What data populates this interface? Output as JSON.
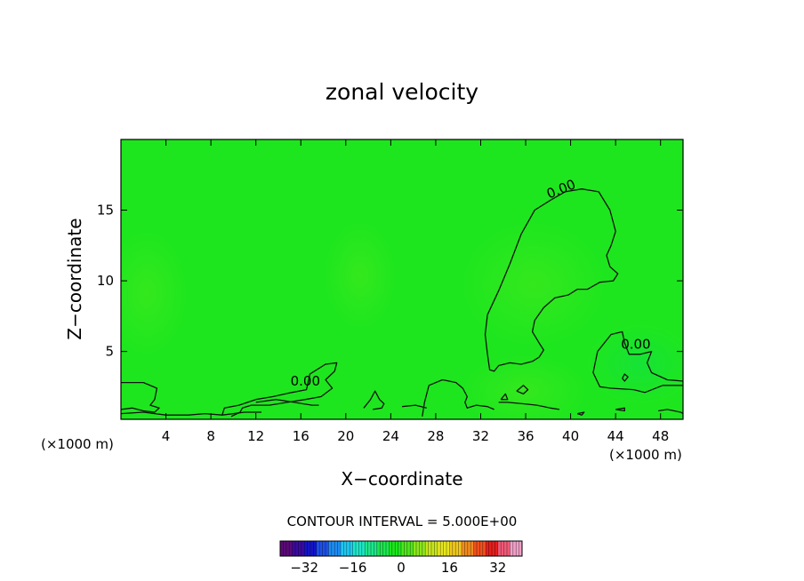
{
  "chart_data": {
    "type": "heatmap",
    "title": "zonal velocity",
    "xlabel": "X−coordinate",
    "ylabel": "Z−coordinate",
    "x_unit_left": "(×1000 m)",
    "x_unit_right": "(×1000 m)",
    "xlim": [
      0,
      50
    ],
    "ylim": [
      0.2,
      20
    ],
    "x_ticks": [
      4,
      8,
      12,
      16,
      20,
      24,
      28,
      32,
      36,
      40,
      44,
      48
    ],
    "y_ticks": [
      5,
      10,
      15
    ],
    "field_base_color": "#1ee61e",
    "contour_interval_text": "CONTOUR INTERVAL = 5.000E+00",
    "contour_labels": [
      {
        "text": "0.00",
        "x": 39.3,
        "y": 16.2
      },
      {
        "text": "0.00",
        "x": 45.8,
        "y": 5.2
      },
      {
        "text": "0.00",
        "x": 16.4,
        "y": 2.6
      }
    ],
    "contours": [
      {
        "level": 0,
        "points": [
          [
            38.2,
            15.7
          ],
          [
            39.5,
            16.3
          ],
          [
            41.0,
            16.5
          ],
          [
            42.5,
            16.3
          ],
          [
            43.5,
            15.0
          ],
          [
            44.0,
            13.5
          ],
          [
            43.6,
            12.5
          ],
          [
            43.2,
            11.8
          ],
          [
            43.5,
            11.0
          ],
          [
            44.2,
            10.5
          ],
          [
            43.8,
            10.0
          ],
          [
            42.6,
            9.9
          ],
          [
            41.5,
            9.4
          ],
          [
            40.6,
            9.4
          ],
          [
            39.8,
            9.0
          ],
          [
            38.6,
            8.8
          ],
          [
            37.6,
            8.1
          ],
          [
            36.8,
            7.2
          ],
          [
            36.6,
            6.4
          ],
          [
            37.2,
            5.6
          ],
          [
            37.6,
            5.1
          ],
          [
            37.2,
            4.6
          ],
          [
            36.6,
            4.3
          ],
          [
            35.6,
            4.1
          ],
          [
            34.6,
            4.2
          ],
          [
            33.6,
            4.0
          ],
          [
            33.2,
            3.6
          ],
          [
            32.8,
            3.7
          ],
          [
            32.6,
            4.8
          ],
          [
            32.4,
            6.2
          ],
          [
            32.6,
            7.6
          ],
          [
            33.6,
            9.3
          ],
          [
            34.6,
            11.2
          ],
          [
            35.6,
            13.3
          ],
          [
            36.8,
            15.0
          ],
          [
            38.2,
            15.7
          ]
        ]
      },
      {
        "level": 0,
        "points": [
          [
            0.0,
            2.8
          ],
          [
            2.0,
            2.8
          ],
          [
            3.2,
            2.4
          ],
          [
            3.0,
            1.6
          ],
          [
            2.6,
            1.2
          ],
          [
            3.4,
            1.0
          ],
          [
            3.0,
            0.7
          ],
          [
            2.0,
            0.8
          ],
          [
            1.0,
            1.0
          ],
          [
            0.0,
            0.9
          ]
        ]
      },
      {
        "level": 0,
        "points": [
          [
            0.0,
            0.6
          ],
          [
            2.0,
            0.7
          ],
          [
            4.0,
            0.5
          ],
          [
            6.0,
            0.5
          ],
          [
            7.5,
            0.6
          ],
          [
            9.0,
            0.5
          ],
          [
            11.0,
            0.7
          ],
          [
            12.5,
            0.7
          ]
        ]
      },
      {
        "level": 0,
        "points": [
          [
            9.0,
            0.5
          ],
          [
            9.2,
            1.0
          ],
          [
            10.5,
            1.2
          ],
          [
            12.0,
            1.6
          ],
          [
            13.5,
            1.8
          ],
          [
            15.2,
            2.1
          ],
          [
            16.5,
            2.3
          ],
          [
            16.8,
            3.4
          ],
          [
            18.2,
            4.1
          ],
          [
            19.2,
            4.2
          ],
          [
            19.0,
            3.6
          ],
          [
            18.2,
            3.0
          ],
          [
            18.8,
            2.4
          ],
          [
            17.8,
            1.8
          ],
          [
            16.4,
            1.6
          ],
          [
            14.8,
            1.4
          ],
          [
            13.2,
            1.2
          ],
          [
            11.6,
            1.2
          ],
          [
            10.8,
            1.0
          ],
          [
            10.6,
            0.7
          ],
          [
            9.8,
            0.4
          ]
        ]
      },
      {
        "level": 0,
        "points": [
          [
            12.0,
            1.4
          ],
          [
            13.8,
            1.6
          ],
          [
            15.4,
            1.4
          ],
          [
            17.0,
            1.2
          ],
          [
            17.6,
            1.2
          ]
        ]
      },
      {
        "level": 0,
        "points": [
          [
            21.6,
            1.0
          ],
          [
            22.2,
            1.6
          ],
          [
            22.6,
            2.2
          ],
          [
            23.0,
            1.6
          ],
          [
            23.4,
            1.3
          ],
          [
            23.2,
            1.0
          ],
          [
            22.4,
            0.9
          ]
        ]
      },
      {
        "level": 0,
        "points": [
          [
            25.0,
            1.1
          ],
          [
            26.2,
            1.2
          ],
          [
            27.2,
            1.0
          ]
        ]
      },
      {
        "level": 0,
        "points": [
          [
            26.8,
            0.4
          ],
          [
            27.0,
            1.4
          ],
          [
            27.4,
            2.6
          ],
          [
            28.6,
            3.0
          ],
          [
            29.8,
            2.8
          ],
          [
            30.4,
            2.4
          ],
          [
            30.8,
            1.8
          ],
          [
            30.6,
            1.4
          ],
          [
            30.8,
            1.0
          ],
          [
            31.6,
            1.2
          ],
          [
            32.6,
            1.1
          ],
          [
            33.2,
            0.9
          ]
        ]
      },
      {
        "level": 0,
        "points": [
          [
            33.6,
            1.4
          ],
          [
            34.4,
            1.4
          ],
          [
            35.8,
            1.3
          ],
          [
            37.0,
            1.2
          ],
          [
            38.2,
            1.0
          ],
          [
            39.0,
            0.9
          ]
        ]
      },
      {
        "level": 0,
        "points": [
          [
            35.2,
            2.2
          ],
          [
            35.8,
            2.6
          ],
          [
            36.2,
            2.3
          ],
          [
            35.8,
            2.0
          ],
          [
            35.2,
            2.2
          ]
        ]
      },
      {
        "level": 0,
        "points": [
          [
            33.8,
            1.6
          ],
          [
            34.2,
            2.0
          ],
          [
            34.4,
            1.6
          ],
          [
            33.8,
            1.6
          ]
        ]
      },
      {
        "level": 0,
        "points": [
          [
            40.6,
            0.6
          ],
          [
            41.2,
            0.7
          ],
          [
            41.0,
            0.5
          ],
          [
            40.6,
            0.6
          ]
        ]
      },
      {
        "level": 0,
        "points": [
          [
            44.0,
            0.9
          ],
          [
            44.8,
            1.0
          ],
          [
            44.8,
            0.8
          ],
          [
            44.0,
            0.9
          ]
        ]
      },
      {
        "level": 0,
        "points": [
          [
            44.6,
            3.1
          ],
          [
            44.8,
            3.4
          ],
          [
            45.1,
            3.2
          ],
          [
            44.8,
            2.9
          ],
          [
            44.6,
            3.1
          ]
        ]
      },
      {
        "level": 0,
        "points": [
          [
            42.4,
            5.0
          ],
          [
            42.0,
            3.5
          ],
          [
            42.6,
            2.5
          ],
          [
            43.6,
            2.4
          ],
          [
            45.6,
            2.3
          ],
          [
            46.6,
            2.1
          ],
          [
            48.2,
            2.6
          ],
          [
            50.0,
            2.6
          ]
        ]
      },
      {
        "level": 0,
        "points": [
          [
            42.4,
            5.0
          ],
          [
            43.6,
            6.2
          ],
          [
            44.6,
            6.4
          ],
          [
            44.8,
            5.6
          ],
          [
            45.2,
            4.8
          ],
          [
            46.2,
            4.8
          ],
          [
            47.2,
            5.0
          ],
          [
            46.8,
            4.2
          ],
          [
            47.2,
            3.5
          ],
          [
            48.6,
            3.0
          ],
          [
            50.0,
            2.9
          ]
        ]
      },
      {
        "level": 0,
        "points": [
          [
            47.8,
            0.8
          ],
          [
            48.6,
            0.9
          ],
          [
            49.8,
            0.7
          ],
          [
            50.0,
            0.6
          ]
        ]
      }
    ],
    "colorbar": {
      "ticks": [
        -32,
        -16,
        0,
        16,
        32
      ],
      "range": [
        -40,
        40
      ],
      "colors": [
        "#5a0a78",
        "#3a0aa0",
        "#1414c8",
        "#1e50e6",
        "#1e8cf0",
        "#1ec8f0",
        "#1ee6c8",
        "#1ee68c",
        "#1ee650",
        "#1ee61e",
        "#50e61e",
        "#8ce61e",
        "#c8e61e",
        "#e6e61e",
        "#f0c81e",
        "#f08c1e",
        "#f0501e",
        "#e61e1e",
        "#f05a78",
        "#f0a0c8"
      ]
    }
  }
}
